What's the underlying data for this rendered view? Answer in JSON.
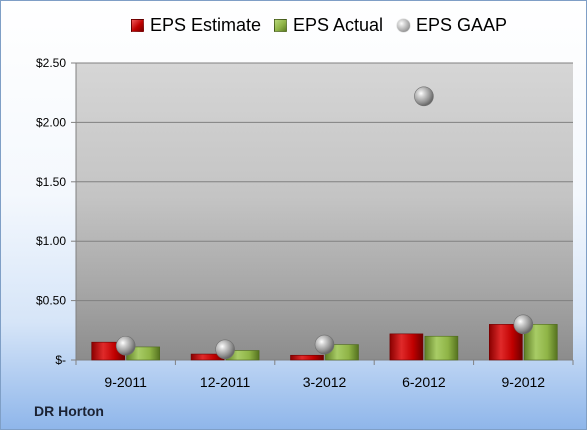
{
  "legend": {
    "estimate": "EPS Estimate",
    "actual": "EPS Actual",
    "gaap": "EPS GAAP"
  },
  "brand": "DR Horton",
  "colors": {
    "estimate": "#c00000",
    "actual": "#8fb446",
    "gaap": "#a6a6a6"
  },
  "chart_data": {
    "type": "bar",
    "categories": [
      "9-2011",
      "12-2011",
      "3-2012",
      "6-2012",
      "9-2012"
    ],
    "series": [
      {
        "name": "EPS Estimate",
        "kind": "bar",
        "values": [
          0.15,
          0.05,
          0.04,
          0.22,
          0.3
        ]
      },
      {
        "name": "EPS Actual",
        "kind": "bar",
        "values": [
          0.11,
          0.08,
          0.13,
          0.2,
          0.3
        ]
      },
      {
        "name": "EPS GAAP",
        "kind": "marker",
        "values": [
          0.12,
          0.09,
          0.13,
          2.22,
          0.3
        ]
      }
    ],
    "ylim": [
      0,
      2.5
    ],
    "yticks": [
      {
        "value": 2.5,
        "label": "$2.50"
      },
      {
        "value": 2.0,
        "label": "$2.00"
      },
      {
        "value": 1.5,
        "label": "$1.50"
      },
      {
        "value": 1.0,
        "label": "$1.00"
      },
      {
        "value": 0.5,
        "label": "$0.50"
      },
      {
        "value": 0,
        "label": "$-"
      }
    ],
    "grid": true,
    "legend_position": "top"
  }
}
